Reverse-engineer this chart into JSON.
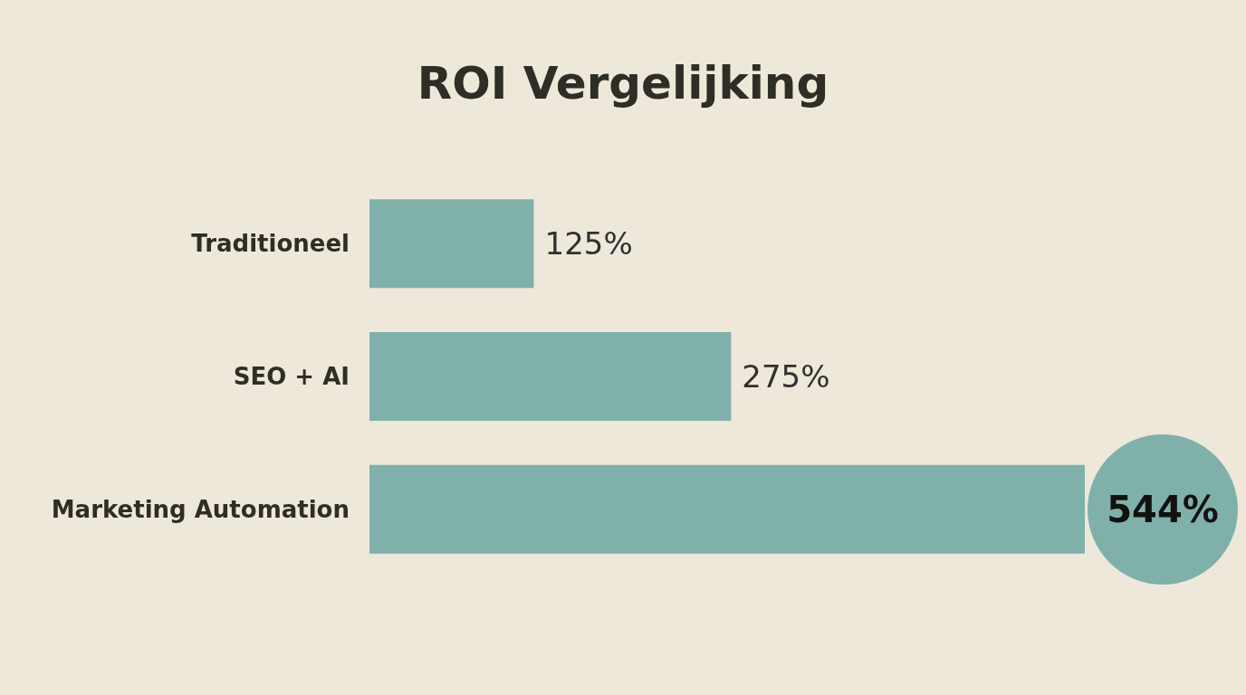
{
  "chart_data": {
    "type": "bar",
    "orientation": "horizontal",
    "title": "ROI Vergelijking",
    "categories": [
      "Traditioneel",
      "SEO + AI",
      "Marketing Automation"
    ],
    "values": [
      125,
      275,
      544
    ],
    "value_labels": [
      "125%",
      "275%",
      "544%"
    ],
    "color": "#7fb0aa"
  }
}
